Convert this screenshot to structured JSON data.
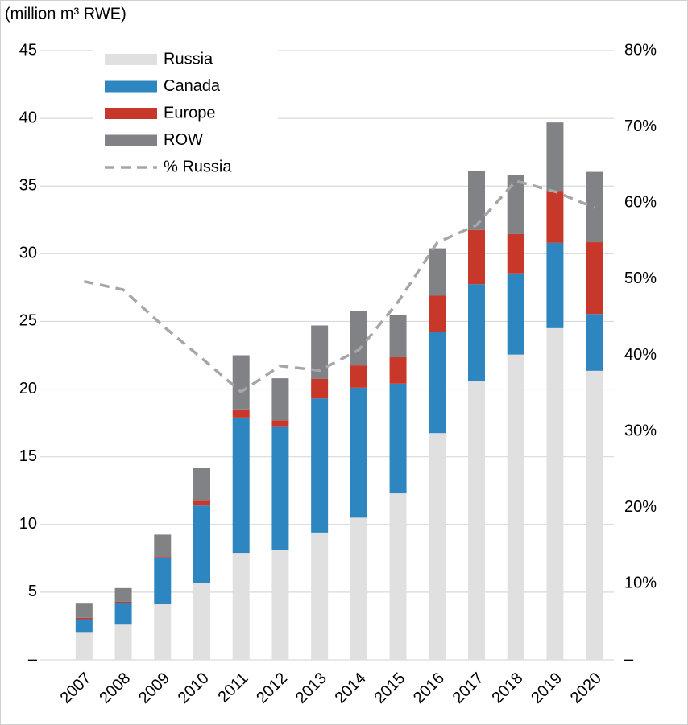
{
  "chart_data": {
    "type": "bar",
    "stacked": true,
    "y_label": "(million m³ RWE)",
    "categories": [
      "2007",
      "2008",
      "2009",
      "2010",
      "2011",
      "2012",
      "2013",
      "2014",
      "2015",
      "2016",
      "2017",
      "2018",
      "2019",
      "2020"
    ],
    "series": [
      {
        "name": "Russia",
        "color": "#e0e0e0",
        "values": [
          2.0,
          2.6,
          4.1,
          5.7,
          7.9,
          8.1,
          9.4,
          10.5,
          12.3,
          16.75,
          20.6,
          22.55,
          24.5,
          21.35
        ]
      },
      {
        "name": "Canada",
        "color": "#2e86c1",
        "values": [
          1.0,
          1.6,
          3.4,
          5.7,
          10.0,
          9.1,
          9.9,
          9.6,
          8.1,
          7.5,
          7.15,
          6.0,
          6.3,
          4.2
        ]
      },
      {
        "name": "Europe",
        "color": "#c8382a",
        "values": [
          0.1,
          0.1,
          0.1,
          0.35,
          0.6,
          0.5,
          1.45,
          1.65,
          1.95,
          2.65,
          4.0,
          2.9,
          3.85,
          5.3
        ]
      },
      {
        "name": "ROW",
        "color": "#808285",
        "values": [
          1.05,
          1.0,
          1.65,
          2.4,
          4.0,
          3.1,
          3.95,
          4.0,
          3.1,
          3.5,
          4.35,
          4.35,
          5.05,
          5.2
        ]
      },
      {
        "name": "% Russia",
        "color": "#a6a6a6",
        "type": "line",
        "dashed": true,
        "axis": "y2",
        "values": [
          49.7,
          48.6,
          43.9,
          39.6,
          35.2,
          38.6,
          38.0,
          40.7,
          47.0,
          54.8,
          57.1,
          62.9,
          61.5,
          59.4
        ]
      }
    ],
    "ylim": [
      0,
      45
    ],
    "yticks": [
      {
        "value": 0,
        "label": "–"
      },
      5,
      10,
      15,
      20,
      25,
      30,
      35,
      40,
      45
    ],
    "y2lim": [
      0,
      80
    ],
    "y2ticks": [
      {
        "value": 0,
        "label": "–"
      },
      {
        "value": 10,
        "label": "10%"
      },
      {
        "value": 20,
        "label": "20%"
      },
      {
        "value": 30,
        "label": "30%"
      },
      {
        "value": 40,
        "label": "40%"
      },
      {
        "value": 50,
        "label": "50%"
      },
      {
        "value": 60,
        "label": "60%"
      },
      {
        "value": 70,
        "label": "70%"
      },
      {
        "value": 80,
        "label": "80%"
      }
    ],
    "grid": true,
    "legend": "top-left"
  }
}
